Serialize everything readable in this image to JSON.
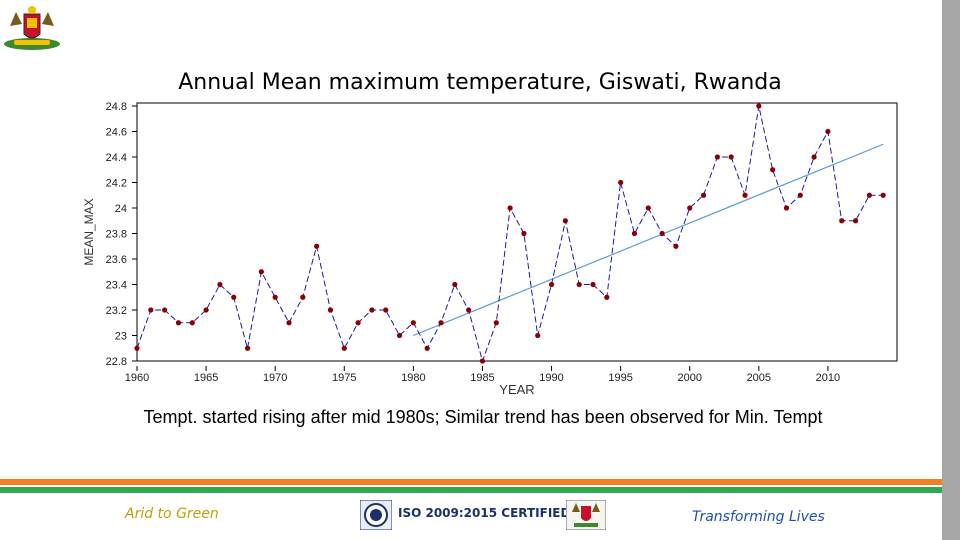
{
  "slide": {
    "title": "Annual Mean maximum temperature, Giswati, Rwanda",
    "caption": "Tempt. started rising after mid 1980s; Similar trend has been observed for Min. Tempt",
    "footer": {
      "left": "Arid to Green",
      "center": "ISO 2009:2015 CERTIFIED",
      "right": "Transforming Lives"
    },
    "colors": {
      "orange": "#f47f20",
      "green": "#2fa84f",
      "accent_blue": "#1f4fb0",
      "gold": "#c0a000"
    }
  },
  "chart_data": {
    "type": "line",
    "title": "Annual Mean maximum temperature, Giswati, Rwanda",
    "xlabel": "YEAR",
    "ylabel": "MEAN_MAX",
    "xlim": [
      1960,
      2015
    ],
    "ylim": [
      22.8,
      24.8
    ],
    "xticks": [
      1960,
      1965,
      1970,
      1975,
      1980,
      1985,
      1990,
      1995,
      2000,
      2005,
      2010
    ],
    "yticks": [
      22.8,
      23.0,
      23.2,
      23.4,
      23.6,
      23.8,
      24.0,
      24.2,
      24.4,
      24.6,
      24.8
    ],
    "ytick_labels": [
      "22.8",
      "23",
      "23.2",
      "23.4",
      "23.6",
      "23.8",
      "24",
      "24.2",
      "24.4",
      "24.6",
      "24.8"
    ],
    "series": [
      {
        "name": "MEAN_MAX",
        "color": "#1a1aa6",
        "marker_color": "#8b0000",
        "x": [
          1960,
          1961,
          1962,
          1963,
          1964,
          1965,
          1966,
          1967,
          1968,
          1969,
          1970,
          1971,
          1972,
          1973,
          1974,
          1975,
          1976,
          1977,
          1978,
          1979,
          1980,
          1981,
          1982,
          1983,
          1984,
          1985,
          1986,
          1987,
          1988,
          1989,
          1990,
          1991,
          1992,
          1993,
          1994,
          1995,
          1996,
          1997,
          1998,
          1999,
          2000,
          2001,
          2002,
          2003,
          2004,
          2005,
          2006,
          2007,
          2008,
          2009,
          2010,
          2011,
          2012,
          2013,
          2014
        ],
        "values": [
          22.9,
          23.2,
          23.2,
          23.1,
          23.1,
          23.2,
          23.4,
          23.3,
          22.9,
          23.5,
          23.3,
          23.1,
          23.3,
          23.7,
          23.2,
          22.9,
          23.1,
          23.2,
          23.2,
          23.0,
          23.1,
          22.9,
          23.1,
          23.4,
          23.2,
          22.8,
          23.1,
          24.0,
          23.8,
          23.0,
          23.4,
          23.9,
          23.4,
          23.4,
          23.3,
          24.2,
          23.8,
          24.0,
          23.8,
          23.7,
          24.0,
          24.1,
          24.4,
          24.4,
          24.1,
          24.8,
          24.3,
          24.0,
          24.1,
          24.4,
          24.6,
          23.9,
          23.9,
          24.1,
          24.1
        ]
      }
    ],
    "trend": {
      "name": "trend",
      "color": "#5b9bd5",
      "x": [
        1980,
        2014
      ],
      "values": [
        23.0,
        24.5
      ]
    }
  }
}
